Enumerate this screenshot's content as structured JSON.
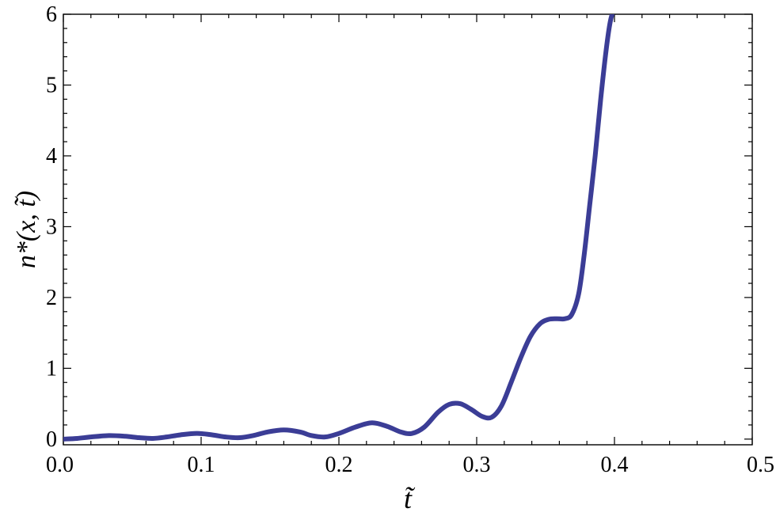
{
  "chart_data": {
    "type": "line",
    "xlabel": "t̃",
    "ylabel": "n*(x, t̃)",
    "xlim": [
      0,
      0.5
    ],
    "ylim": [
      -0.08,
      6
    ],
    "x_ticks": [
      0.0,
      0.1,
      0.2,
      0.3,
      0.4,
      0.5
    ],
    "x_tick_labels": [
      "0.0",
      "0.1",
      "0.2",
      "0.3",
      "0.4",
      "0.5"
    ],
    "y_ticks": [
      0,
      1,
      2,
      3,
      4,
      5,
      6
    ],
    "y_tick_labels": [
      "0",
      "1",
      "2",
      "3",
      "4",
      "5",
      "6"
    ],
    "grid": false,
    "series": [
      {
        "color": "#3b3d96",
        "x": [
          0.0,
          0.01,
          0.02,
          0.033,
          0.045,
          0.055,
          0.065,
          0.075,
          0.085,
          0.097,
          0.108,
          0.118,
          0.128,
          0.138,
          0.148,
          0.16,
          0.172,
          0.18,
          0.19,
          0.2,
          0.212,
          0.224,
          0.235,
          0.245,
          0.253,
          0.262,
          0.272,
          0.28,
          0.288,
          0.296,
          0.304,
          0.311,
          0.318,
          0.325,
          0.332,
          0.339,
          0.346,
          0.352,
          0.358,
          0.364,
          0.369,
          0.374,
          0.378,
          0.382,
          0.386,
          0.39,
          0.394,
          0.397,
          0.4
        ],
        "y": [
          0.0,
          0.01,
          0.03,
          0.05,
          0.04,
          0.02,
          0.01,
          0.03,
          0.06,
          0.08,
          0.06,
          0.03,
          0.02,
          0.05,
          0.1,
          0.13,
          0.1,
          0.05,
          0.03,
          0.08,
          0.17,
          0.23,
          0.18,
          0.1,
          0.08,
          0.17,
          0.38,
          0.49,
          0.5,
          0.42,
          0.32,
          0.31,
          0.47,
          0.8,
          1.15,
          1.45,
          1.63,
          1.69,
          1.7,
          1.7,
          1.76,
          2.05,
          2.6,
          3.3,
          4.0,
          4.8,
          5.5,
          5.9,
          6.1
        ]
      }
    ]
  }
}
